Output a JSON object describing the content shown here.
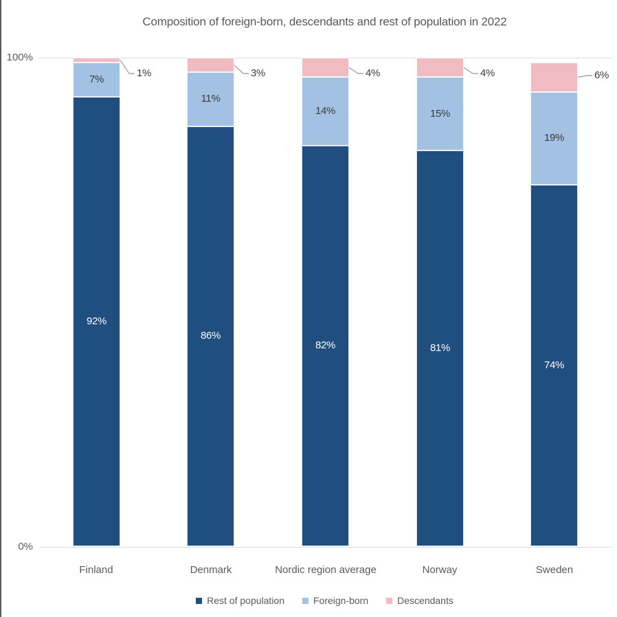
{
  "window": {
    "left_edge_color": "#5a5a5a"
  },
  "chart_data": {
    "type": "bar",
    "stacked": true,
    "orientation": "vertical",
    "title": "Composition of foreign-born, descendants and rest of population in 2022",
    "categories": [
      "Finland",
      "Denmark",
      "Nordic region average",
      "Norway",
      "Sweden"
    ],
    "series": [
      {
        "name": "Rest of population",
        "color": "#204E7E",
        "label_color": "#FFFFFF",
        "label_placement": "inside-center",
        "values": [
          92,
          86,
          82,
          81,
          74
        ]
      },
      {
        "name": "Foreign-born",
        "color": "#A3C1E2",
        "label_color": "#3B3B3B",
        "label_placement": "inside-center",
        "values": [
          7,
          11,
          14,
          15,
          19
        ]
      },
      {
        "name": "Descendants",
        "color": "#F0BCC2",
        "label_color": "#3B3B3B",
        "label_placement": "outside-callout",
        "values": [
          1,
          3,
          4,
          4,
          6
        ]
      }
    ],
    "value_suffix": "%",
    "ylim": [
      0,
      100
    ],
    "y_ticks": [
      {
        "label": "100%",
        "value": 100
      },
      {
        "label": "0%",
        "value": 0
      }
    ],
    "grid": "single gridline at 100% and axis line at 0%, light gray",
    "legend_position": "bottom-center",
    "colors": {
      "gridline": "#D9D9D9",
      "leader_line": "#A6A6A6",
      "text": "#595959"
    }
  }
}
